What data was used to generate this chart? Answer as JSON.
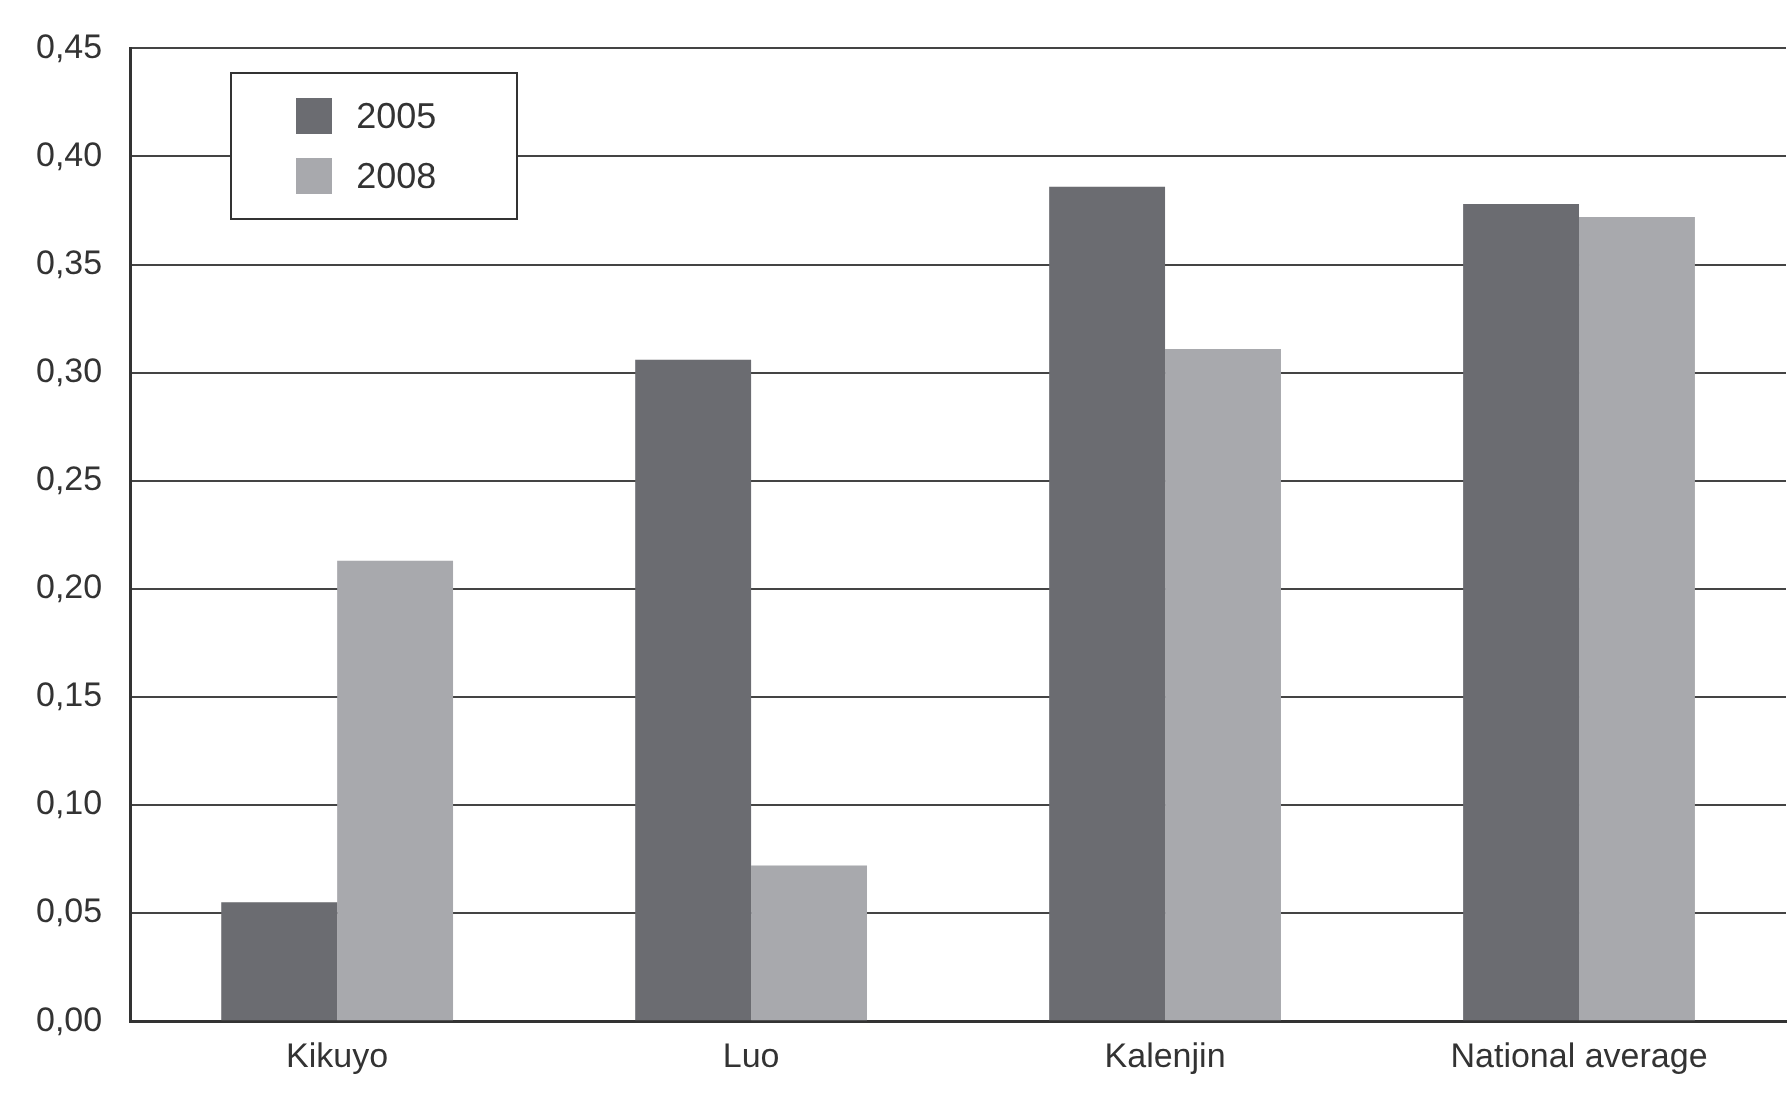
{
  "chart_data": {
    "type": "bar",
    "categories": [
      "Kikuyo",
      "Luo",
      "Kalenjin",
      "National average"
    ],
    "series": [
      {
        "name": "2005",
        "color": "#6b6c71",
        "values": [
          0.055,
          0.306,
          0.386,
          0.378
        ]
      },
      {
        "name": "2008",
        "color": "#a8a9ad",
        "values": [
          0.213,
          0.072,
          0.311,
          0.372
        ]
      }
    ],
    "ylim": [
      0,
      0.45
    ],
    "yticks": [
      {
        "value": 0,
        "label": "0,00"
      },
      {
        "value": 0.05,
        "label": "0,05"
      },
      {
        "value": 0.1,
        "label": "0,10"
      },
      {
        "value": 0.15,
        "label": "0,15"
      },
      {
        "value": 0.2,
        "label": "0,20"
      },
      {
        "value": 0.25,
        "label": "0,25"
      },
      {
        "value": 0.3,
        "label": "0,30"
      },
      {
        "value": 0.35,
        "label": "0,35"
      },
      {
        "value": 0.4,
        "label": "0,40"
      },
      {
        "value": 0.45,
        "label": "0,45"
      }
    ],
    "grid": "y",
    "legend": "top left"
  }
}
